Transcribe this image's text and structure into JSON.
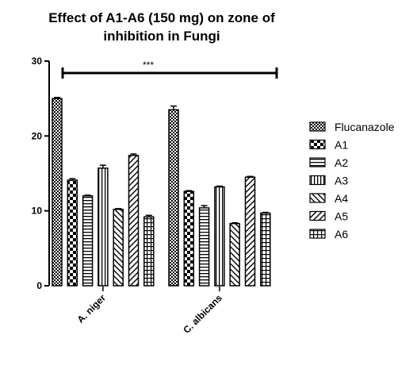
{
  "chart_data": {
    "type": "bar",
    "title_line1": "Effect of A1-A6 (150 mg) on zone of",
    "title_line2": "inhibition in Fungi",
    "categories": [
      "A. niger",
      "C. albicans"
    ],
    "ylim": [
      0,
      30
    ],
    "yticks": [
      "0",
      "10",
      "20",
      "30"
    ],
    "significance": "***",
    "series": [
      {
        "name": "Flucanazole",
        "pattern": "checker",
        "values": [
          25.0,
          23.5
        ],
        "errors": [
          0.15,
          0.5
        ]
      },
      {
        "name": "A1",
        "pattern": "bigchecker",
        "values": [
          14.1,
          12.6
        ],
        "errors": [
          0.2,
          0.1
        ]
      },
      {
        "name": "A2",
        "pattern": "hlines",
        "values": [
          12.0,
          10.4
        ],
        "errors": [
          0.1,
          0.3
        ]
      },
      {
        "name": "A3",
        "pattern": "vlines",
        "values": [
          15.7,
          13.2
        ],
        "errors": [
          0.4,
          0.1
        ]
      },
      {
        "name": "A4",
        "pattern": "diag-up",
        "values": [
          10.2,
          8.3
        ],
        "errors": [
          0.1,
          0.1
        ]
      },
      {
        "name": "A5",
        "pattern": "diag-down",
        "values": [
          17.4,
          14.5
        ],
        "errors": [
          0.2,
          0.1
        ]
      },
      {
        "name": "A6",
        "pattern": "grid",
        "values": [
          9.2,
          9.7
        ],
        "errors": [
          0.2,
          0.1
        ]
      }
    ]
  }
}
